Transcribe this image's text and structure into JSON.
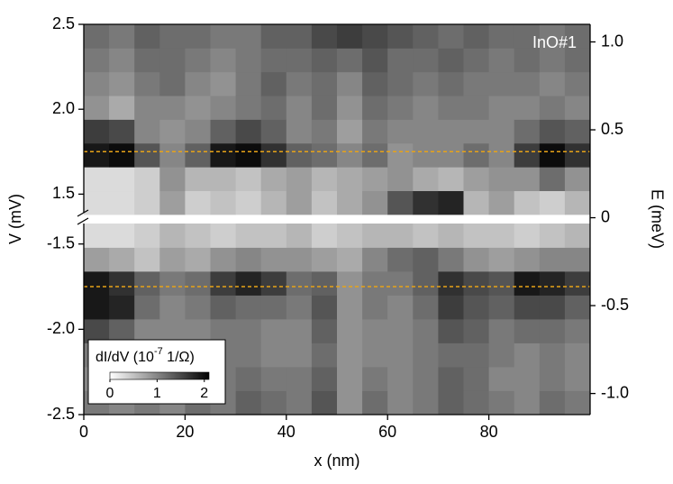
{
  "chart_data": {
    "type": "heatmap",
    "annotation": "InO#1",
    "xlabel": "x (nm)",
    "ylabel": "V (mV)",
    "y2label": "E (meV)",
    "xlim": [
      0,
      100
    ],
    "xticks": [
      0,
      20,
      40,
      60,
      80
    ],
    "x_bins": [
      0,
      5,
      10,
      15,
      20,
      25,
      30,
      35,
      40,
      45,
      50,
      55,
      60,
      65,
      70,
      75,
      80,
      85,
      90,
      95,
      100
    ],
    "y2lim": [
      -1.12,
      1.1
    ],
    "y2ticks": [
      {
        "value": 1,
        "label": "1.0"
      },
      0.5,
      0,
      -0.5,
      {
        "value": -1,
        "label": "-1.0"
      }
    ],
    "clim": [
      0,
      2.1
    ],
    "colorbar": {
      "label_parts": [
        "dI/dV (10",
        "-7",
        " 1/Ω)"
      ],
      "ticks": [
        0,
        1,
        2
      ]
    },
    "panels": [
      {
        "ylim": [
          1.38,
          2.5
        ],
        "yticks": [
          1.5,
          {
            "value": 2,
            "label": "2.0"
          },
          2.5
        ],
        "hline": 1.75,
        "hline_color": "#e8a317",
        "y_bins": [
          1.38,
          1.52,
          1.66,
          1.8,
          1.94,
          2.08,
          2.22,
          2.36,
          2.5
        ],
        "z": [
          [
            0.3,
            0.3,
            0.4,
            0.8,
            0.4,
            0.5,
            0.4,
            0.6,
            0.8,
            0.5,
            0.7,
            0.9,
            1.4,
            1.7,
            1.8,
            0.6,
            0.8,
            0.5,
            0.4,
            0.6
          ],
          [
            0.3,
            0.3,
            0.4,
            0.9,
            0.6,
            0.6,
            0.5,
            0.7,
            0.8,
            0.6,
            0.7,
            0.8,
            0.9,
            0.7,
            0.6,
            0.8,
            0.9,
            0.9,
            1.2,
            0.9
          ],
          [
            1.9,
            2.0,
            1.4,
            1.0,
            1.3,
            1.9,
            2.0,
            1.7,
            1.3,
            1.2,
            1.0,
            1.2,
            0.9,
            1.0,
            1.0,
            1.2,
            1.0,
            1.6,
            2.0,
            1.7
          ],
          [
            1.6,
            1.5,
            1.0,
            0.9,
            1.0,
            1.3,
            1.5,
            1.3,
            1.0,
            1.1,
            0.8,
            1.1,
            1.0,
            1.0,
            1.0,
            1.0,
            1.0,
            1.2,
            1.4,
            1.3
          ],
          [
            0.9,
            0.7,
            1.0,
            1.0,
            0.9,
            1.0,
            1.1,
            1.2,
            1.0,
            1.2,
            0.9,
            1.2,
            1.1,
            1.0,
            1.1,
            1.1,
            1.0,
            1.0,
            1.1,
            1.0
          ],
          [
            1.0,
            0.9,
            1.1,
            1.2,
            1.0,
            0.9,
            1.1,
            1.3,
            1.1,
            1.2,
            1.0,
            1.3,
            1.2,
            1.1,
            1.2,
            1.1,
            1.1,
            1.1,
            1.0,
            1.1
          ],
          [
            1.1,
            1.0,
            1.2,
            1.2,
            1.1,
            1.0,
            1.1,
            1.2,
            1.2,
            1.3,
            1.2,
            1.4,
            1.2,
            1.2,
            1.3,
            1.2,
            1.1,
            1.2,
            1.1,
            1.2
          ],
          [
            1.2,
            1.1,
            1.3,
            1.2,
            1.2,
            1.1,
            1.1,
            1.3,
            1.3,
            1.5,
            1.6,
            1.5,
            1.4,
            1.3,
            1.2,
            1.3,
            1.2,
            1.2,
            1.1,
            1.2
          ]
        ]
      },
      {
        "ylim": [
          -2.5,
          -1.38
        ],
        "yticks": [
          -2.5,
          {
            "value": -2,
            "label": "-2.0"
          },
          -1.5
        ],
        "hline": -1.75,
        "hline_color": "#e8a317",
        "y_bins": [
          -2.5,
          -2.36,
          -2.22,
          -2.08,
          -1.94,
          -1.8,
          -1.66,
          -1.52,
          -1.38
        ],
        "z": [
          [
            1.1,
            1.0,
            1.1,
            1.0,
            1.2,
            1.1,
            1.3,
            1.2,
            1.1,
            1.4,
            0.9,
            1.2,
            1.0,
            1.1,
            1.3,
            1.2,
            1.1,
            1.0,
            1.2,
            1.1
          ],
          [
            1.0,
            1.0,
            1.0,
            1.0,
            1.1,
            1.1,
            1.2,
            1.1,
            1.1,
            1.3,
            0.9,
            1.1,
            1.0,
            1.1,
            1.3,
            1.2,
            1.0,
            1.0,
            1.1,
            1.0
          ],
          [
            1.1,
            1.0,
            1.0,
            1.0,
            1.0,
            1.1,
            1.1,
            1.0,
            1.0,
            1.2,
            0.9,
            1.0,
            1.0,
            1.1,
            1.2,
            1.2,
            1.1,
            1.0,
            1.1,
            1.0
          ],
          [
            1.5,
            1.3,
            1.0,
            1.0,
            1.0,
            1.1,
            1.1,
            1.0,
            1.0,
            1.3,
            0.9,
            1.0,
            1.0,
            1.1,
            1.4,
            1.3,
            1.1,
            1.2,
            1.2,
            1.1
          ],
          [
            1.9,
            1.8,
            1.2,
            1.0,
            1.1,
            1.3,
            1.2,
            1.2,
            1.1,
            1.4,
            0.9,
            1.1,
            1.0,
            1.2,
            1.6,
            1.4,
            1.3,
            1.5,
            1.5,
            1.3
          ],
          [
            1.9,
            1.7,
            1.3,
            1.1,
            1.2,
            1.6,
            1.8,
            1.6,
            1.2,
            1.3,
            0.9,
            1.1,
            1.1,
            1.3,
            1.7,
            1.5,
            1.4,
            1.9,
            1.8,
            1.6
          ],
          [
            0.8,
            0.7,
            0.5,
            0.8,
            0.7,
            0.9,
            1.0,
            0.9,
            0.9,
            0.8,
            0.7,
            1.0,
            1.2,
            1.3,
            1.1,
            0.9,
            0.8,
            0.9,
            1.0,
            1.0
          ],
          [
            0.3,
            0.3,
            0.4,
            0.6,
            0.5,
            0.4,
            0.5,
            0.5,
            0.6,
            0.4,
            0.5,
            0.6,
            0.6,
            0.5,
            0.6,
            0.5,
            0.5,
            0.4,
            0.5,
            0.6
          ]
        ]
      }
    ]
  }
}
